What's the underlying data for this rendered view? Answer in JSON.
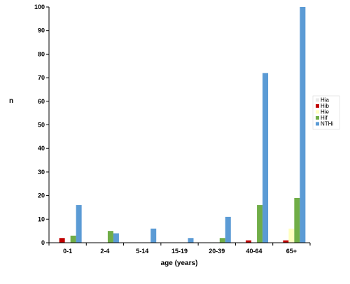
{
  "chart_data": {
    "type": "bar",
    "title": "",
    "xlabel": "age (years)",
    "ylabel": "n",
    "ylim": [
      0,
      100
    ],
    "yticks": [
      0,
      10,
      20,
      30,
      40,
      50,
      60,
      70,
      80,
      90,
      100
    ],
    "grid": false,
    "legend_position": "right",
    "categories": [
      "0-1",
      "2-4",
      "5-14",
      "15-19",
      "20-39",
      "40-64",
      "65+"
    ],
    "series": [
      {
        "name": "Hia",
        "color": "#e8e8e8",
        "values": [
          0,
          0,
          0,
          0,
          0,
          0,
          0
        ]
      },
      {
        "name": "Hib",
        "color": "#c00000",
        "values": [
          2,
          0,
          0,
          0,
          0,
          1,
          1
        ]
      },
      {
        "name": "Hie",
        "color": "#ffffc0",
        "values": [
          0,
          0,
          0,
          0,
          0,
          0,
          6
        ]
      },
      {
        "name": "Hif",
        "color": "#70ad47",
        "values": [
          3,
          5,
          0,
          0,
          2,
          16,
          19
        ]
      },
      {
        "name": "NTHi",
        "color": "#5b9bd5",
        "values": [
          16,
          4,
          6,
          2,
          11,
          72,
          100
        ]
      }
    ]
  }
}
